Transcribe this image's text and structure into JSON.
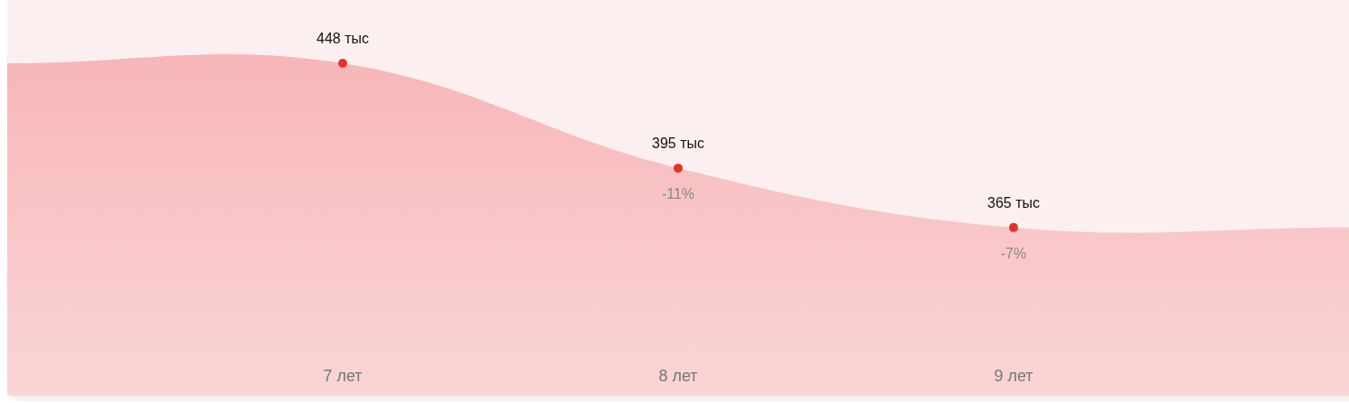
{
  "chart_data": {
    "type": "area",
    "categories": [
      null,
      "7 лет",
      "8 лет",
      "9 лет",
      null
    ],
    "series": [
      {
        "color": "#f7b1b3",
        "values": [
          448,
          448,
          395,
          365,
          365
        ],
        "value_labels": [
          null,
          "448 тыс",
          "395 тыс",
          "365 тыс",
          null
        ]
      }
    ],
    "marker": "circle",
    "annotations": [
      {
        "text": "-11%",
        "x": "8 лет",
        "y": 395
      },
      {
        "text": "-7%",
        "x": "9 лет",
        "y": 365
      }
    ],
    "grid": false,
    "legend": false
  }
}
